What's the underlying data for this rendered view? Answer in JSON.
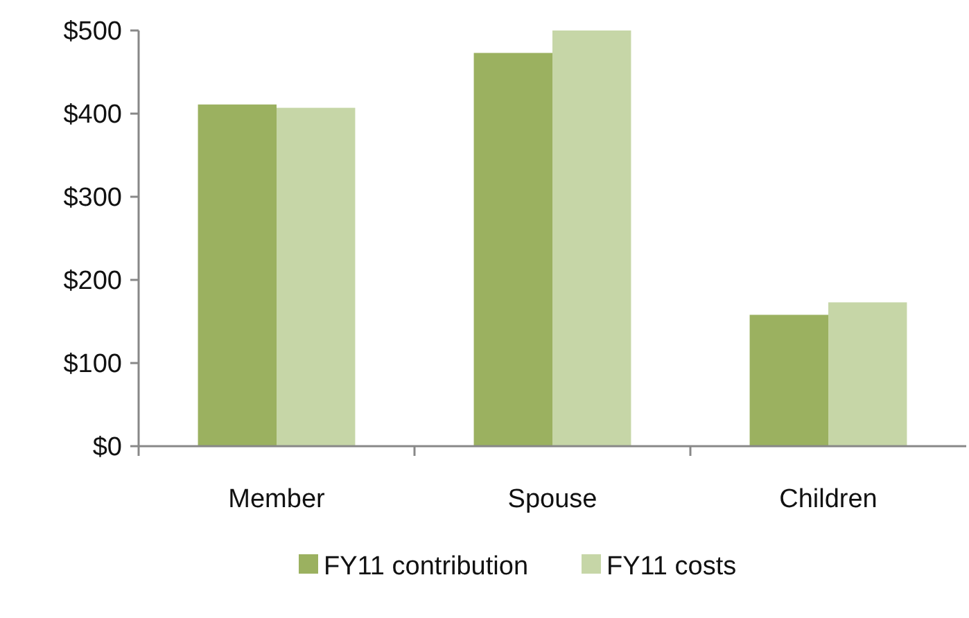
{
  "chart_data": {
    "type": "bar",
    "categories": [
      "Member",
      "Spouse",
      "Children"
    ],
    "series": [
      {
        "name": "FY11 contribution",
        "color": "#9bb160",
        "values": [
          411,
          473,
          158
        ]
      },
      {
        "name": "FY11 costs",
        "color": "#c6d6a7",
        "values": [
          407,
          500,
          173
        ]
      }
    ],
    "ylim": [
      0,
      500
    ],
    "yticks": [
      {
        "value": 0,
        "label": "$0"
      },
      {
        "value": 100,
        "label": "$100"
      },
      {
        "value": 200,
        "label": "$200"
      },
      {
        "value": 300,
        "label": "$300"
      },
      {
        "value": 400,
        "label": "$400"
      },
      {
        "value": 500,
        "label": "$500"
      }
    ],
    "grid": false,
    "legend": "bottom"
  }
}
